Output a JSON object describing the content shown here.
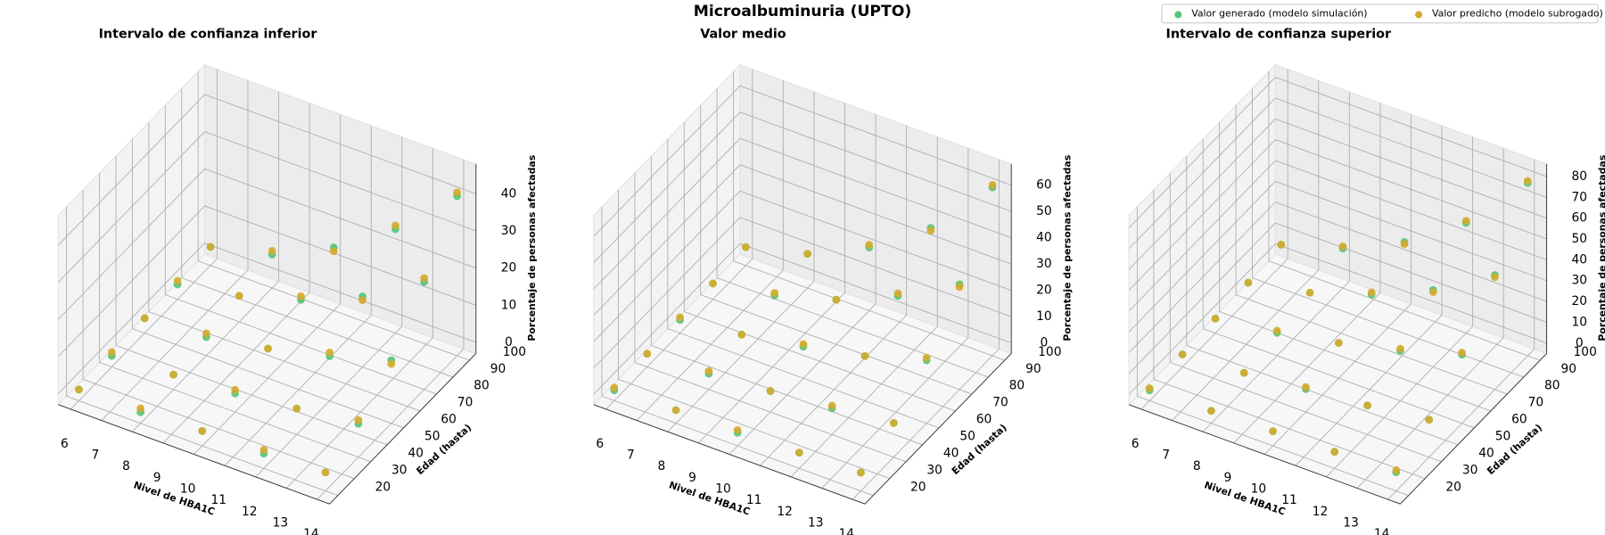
{
  "title": "Microalbuminuria (UPTO)",
  "legend": "upper right",
  "chart_data": [
    {
      "type": "scatter3d",
      "title": "Intervalo de confianza inferior",
      "xlabel": "Nivel de HBA1C",
      "ylabel": "Edad (hasta)",
      "zlabel": "Porcentaje de personas afectadas",
      "x": [
        6,
        6,
        6,
        6,
        6,
        8,
        8,
        8,
        8,
        8,
        10,
        10,
        10,
        10,
        10,
        12,
        12,
        12,
        12,
        12,
        14,
        14,
        14,
        14,
        14
      ],
      "y": [
        20,
        40,
        60,
        80,
        100,
        20,
        40,
        60,
        80,
        100,
        20,
        40,
        60,
        80,
        100,
        20,
        40,
        60,
        80,
        100,
        20,
        40,
        60,
        80,
        100
      ],
      "series": [
        {
          "name": "Valor generado (modelo simulación)",
          "color": "#55c47b",
          "values": [
            0,
            0,
            1,
            1,
            2,
            0,
            1,
            2,
            4,
            6,
            1,
            2,
            5,
            9,
            14,
            1,
            4,
            9,
            16,
            25,
            2,
            6,
            14,
            26,
            40
          ]
        },
        {
          "name": "Valor predicho (modelo subrogado)",
          "color": "#d3ab2f",
          "values": [
            0,
            1,
            1,
            2,
            2,
            1,
            1,
            3,
            4,
            7,
            1,
            3,
            5,
            10,
            13,
            2,
            4,
            10,
            15,
            26,
            2,
            7,
            13,
            27,
            41
          ]
        }
      ],
      "xlim": [
        5.6,
        14.4
      ],
      "ylim": [
        15,
        104
      ],
      "zlim": [
        -3,
        48
      ],
      "xticks": [
        6,
        7,
        8,
        9,
        10,
        11,
        12,
        13,
        14
      ],
      "yticks": [
        20,
        30,
        40,
        50,
        60,
        70,
        80,
        90,
        100
      ],
      "zticks": [
        0,
        10,
        20,
        30,
        40
      ],
      "grid": true
    },
    {
      "type": "scatter3d",
      "title": "Valor medio",
      "xlabel": "Nivel de HBA1C",
      "ylabel": "Edad (hasta)",
      "zlabel": "Porcentaje de personas afectadas",
      "x": [
        6,
        6,
        6,
        6,
        6,
        8,
        8,
        8,
        8,
        8,
        10,
        10,
        10,
        10,
        10,
        12,
        12,
        12,
        12,
        12,
        14,
        14,
        14,
        14,
        14
      ],
      "y": [
        20,
        40,
        60,
        80,
        100,
        20,
        40,
        60,
        80,
        100,
        20,
        40,
        60,
        80,
        100,
        20,
        40,
        60,
        80,
        100,
        20,
        40,
        60,
        80,
        100
      ],
      "series": [
        {
          "name": "Valor generado (modelo simulación)",
          "color": "#55c47b",
          "values": [
            0,
            1,
            1,
            2,
            3,
            1,
            2,
            4,
            6,
            9,
            1,
            4,
            8,
            13,
            20,
            2,
            6,
            13,
            23,
            36,
            3,
            9,
            20,
            36,
            60
          ]
        },
        {
          "name": "Valor predicho (modelo subrogado)",
          "color": "#d3ab2f",
          "values": [
            1,
            1,
            2,
            2,
            3,
            1,
            3,
            4,
            7,
            9,
            2,
            4,
            9,
            13,
            21,
            2,
            7,
            13,
            24,
            35,
            3,
            9,
            21,
            35,
            61
          ]
        }
      ],
      "xlim": [
        5.6,
        14.4
      ],
      "ylim": [
        15,
        104
      ],
      "zlim": [
        -4,
        68
      ],
      "xticks": [
        6,
        7,
        8,
        9,
        10,
        11,
        12,
        13,
        14
      ],
      "yticks": [
        20,
        30,
        40,
        50,
        60,
        70,
        80,
        90,
        100
      ],
      "zticks": [
        0,
        10,
        20,
        30,
        40,
        50,
        60
      ],
      "grid": true
    },
    {
      "type": "scatter3d",
      "title": "Intervalo de confianza superior",
      "xlabel": "Nivel de HBA1C",
      "ylabel": "Edad (hasta)",
      "zlabel": "Porcentaje de personas afectadas",
      "x": [
        6,
        6,
        6,
        6,
        6,
        8,
        8,
        8,
        8,
        8,
        10,
        10,
        10,
        10,
        10,
        12,
        12,
        12,
        12,
        12,
        14,
        14,
        14,
        14,
        14
      ],
      "y": [
        20,
        40,
        60,
        80,
        100,
        20,
        40,
        60,
        80,
        100,
        20,
        40,
        60,
        80,
        100,
        20,
        40,
        60,
        80,
        100,
        20,
        40,
        60,
        80,
        100
      ],
      "series": [
        {
          "name": "Valor generado (modelo simulación)",
          "color": "#55c47b",
          "values": [
            0,
            1,
            2,
            3,
            5,
            1,
            3,
            6,
            9,
            14,
            2,
            6,
            12,
            19,
            28,
            3,
            9,
            19,
            32,
            48,
            4,
            13,
            28,
            50,
            78
          ]
        },
        {
          "name": "Valor predicho (modelo subrogado)",
          "color": "#d3ab2f",
          "values": [
            1,
            1,
            2,
            3,
            5,
            1,
            3,
            7,
            9,
            15,
            2,
            7,
            12,
            20,
            27,
            3,
            9,
            20,
            31,
            49,
            5,
            13,
            29,
            49,
            79
          ]
        }
      ],
      "xlim": [
        5.6,
        14.4
      ],
      "ylim": [
        15,
        104
      ],
      "zlim": [
        -5,
        86
      ],
      "xticks": [
        6,
        7,
        8,
        9,
        10,
        11,
        12,
        13,
        14
      ],
      "yticks": [
        20,
        30,
        40,
        50,
        60,
        70,
        80,
        90,
        100
      ],
      "zticks": [
        0,
        10,
        20,
        30,
        40,
        50,
        60,
        70,
        80
      ],
      "grid": true
    }
  ]
}
